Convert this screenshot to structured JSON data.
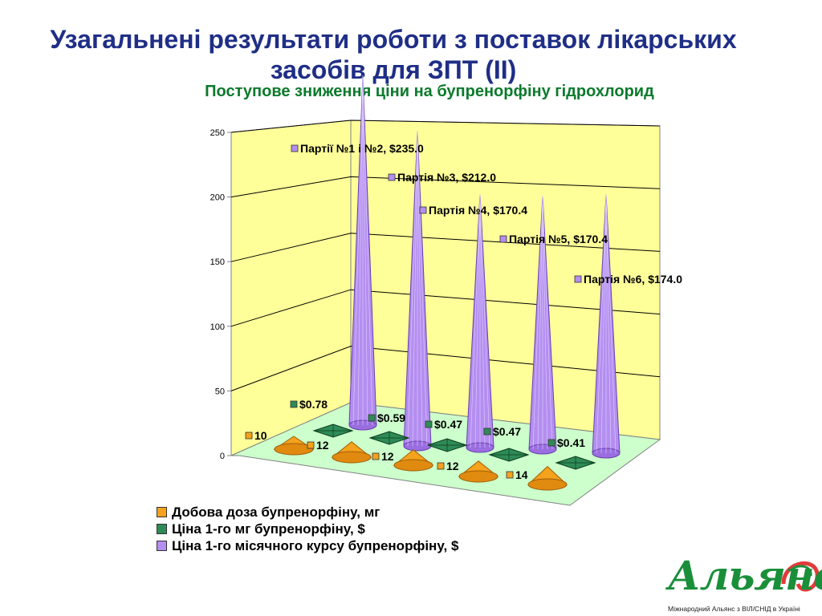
{
  "slide": {
    "title_line1": "Узагальнені результати роботи з поставок лікарських",
    "title_line2": "засобів для ЗПТ (ІІ)"
  },
  "logo": {
    "name": "Альянс",
    "subtitle": "Міжнародний Альянс з ВІЛ/СНІД в Україні",
    "color": "#1a8f3a",
    "accent": "#e23b3b"
  },
  "colors": {
    "dose": "#f5a21c",
    "price_mg": "#2e8b57",
    "price_month": "#b48ef0",
    "wall": "#ffff99",
    "floor": "#ccffcc"
  },
  "chart_data": {
    "type": "bar",
    "style": "3d-cone",
    "title": "Поступове зниження ціни на бупренорфіну гідрохлорид",
    "y_ticks": [
      "0",
      "50",
      "100",
      "150",
      "200",
      "250"
    ],
    "ylim": [
      0,
      250
    ],
    "grid": true,
    "legend_position": "bottom",
    "categories": [
      "Партії №1 і №2",
      "Партія №3",
      "Партія №4",
      "Партія №5",
      "Партія №6"
    ],
    "series": [
      {
        "name": "Добова доза бупренорфіну, мг",
        "values": [
          10,
          12,
          12,
          12,
          14
        ],
        "labels": [
          "10",
          "12",
          "12",
          "12",
          "14"
        ]
      },
      {
        "name": "Ціна 1-го мг бупренорфіну, $",
        "values": [
          0.78,
          0.59,
          0.47,
          0.47,
          0.41
        ],
        "labels": [
          "$0.78",
          "$0.59",
          "$0.47",
          "$0.47",
          "$0.41"
        ]
      },
      {
        "name": "Ціна 1-го місячного курсу бупренорфіну, $",
        "values": [
          235.0,
          212.0,
          170.4,
          170.4,
          174.0
        ],
        "labels": [
          "Партії №1 і №2, $235.0",
          "Партія №3, $212.0",
          "Партія №4, $170.4",
          "Партія №5, $170.4",
          "Партія №6, $174.0"
        ]
      }
    ]
  }
}
